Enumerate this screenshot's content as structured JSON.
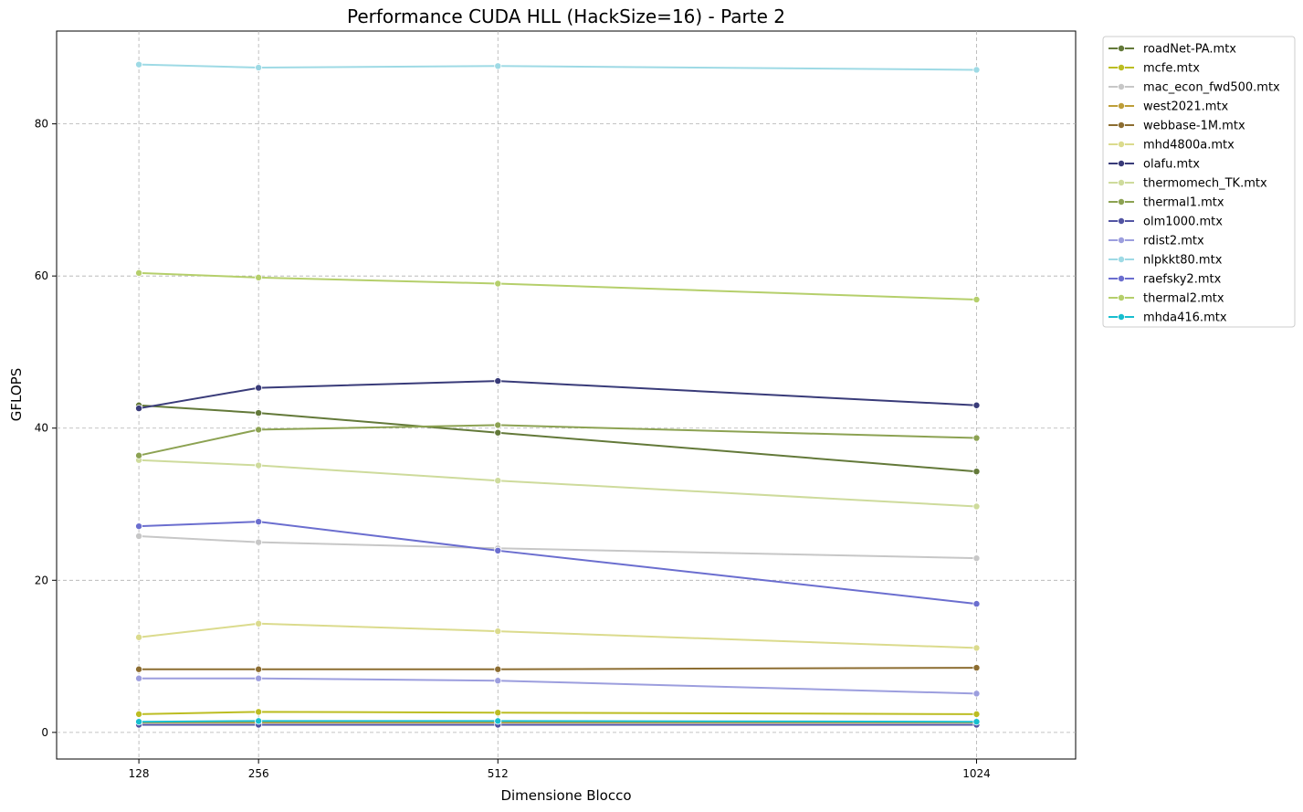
{
  "chart_data": {
    "type": "line",
    "title": "Performance CUDA HLL (HackSize=16) - Parte 2",
    "xlabel": "Dimensione Blocco",
    "ylabel": "GFLOPS",
    "x": [
      128,
      256,
      512,
      1024
    ],
    "x_tick_labels": [
      "128",
      "256",
      "512",
      "1024"
    ],
    "y_ticks": [
      0,
      20,
      40,
      60,
      80
    ],
    "y_tick_labels": [
      "0",
      "20",
      "40",
      "60",
      "80"
    ],
    "xlim": [
      40,
      1130
    ],
    "ylim": [
      -3.5,
      92.2
    ],
    "grid": true,
    "legend_position": "outside-top-right",
    "series": [
      {
        "name": "roadNet-PA.mtx",
        "color": "#637939",
        "values": [
          43.0,
          42.0,
          39.4,
          34.3
        ]
      },
      {
        "name": "mcfe.mtx",
        "color": "#bcbd22",
        "values": [
          2.4,
          2.7,
          2.6,
          2.4
        ]
      },
      {
        "name": "mac_econ_fwd500.mtx",
        "color": "#c7c7c7",
        "values": [
          25.8,
          25.0,
          24.2,
          22.9
        ]
      },
      {
        "name": "west2021.mtx",
        "color": "#bd9e39",
        "values": [
          1.3,
          1.3,
          1.3,
          1.3
        ]
      },
      {
        "name": "webbase-1M.mtx",
        "color": "#8c6d31",
        "values": [
          8.3,
          8.3,
          8.3,
          8.5
        ]
      },
      {
        "name": "mhd4800a.mtx",
        "color": "#dbdb8d",
        "values": [
          12.5,
          14.3,
          13.3,
          11.1
        ]
      },
      {
        "name": "olafu.mtx",
        "color": "#393b79",
        "values": [
          42.6,
          45.3,
          46.2,
          43.0
        ]
      },
      {
        "name": "thermomech_TK.mtx",
        "color": "#cedb9c",
        "values": [
          35.8,
          35.1,
          33.1,
          29.7
        ]
      },
      {
        "name": "thermal1.mtx",
        "color": "#8ca252",
        "values": [
          36.4,
          39.8,
          40.4,
          38.7
        ]
      },
      {
        "name": "olm1000.mtx",
        "color": "#5254a3",
        "values": [
          1.0,
          1.0,
          1.0,
          1.0
        ]
      },
      {
        "name": "rdist2.mtx",
        "color": "#9c9ede",
        "values": [
          7.1,
          7.1,
          6.8,
          5.1
        ]
      },
      {
        "name": "nlpkkt80.mtx",
        "color": "#9edae5",
        "values": [
          87.8,
          87.4,
          87.6,
          87.1
        ]
      },
      {
        "name": "raefsky2.mtx",
        "color": "#6b6ecf",
        "values": [
          27.1,
          27.7,
          23.9,
          16.9
        ]
      },
      {
        "name": "thermal2.mtx",
        "color": "#b5cf6b",
        "values": [
          60.4,
          59.8,
          59.0,
          56.9
        ]
      },
      {
        "name": "mhda416.mtx",
        "color": "#17becf",
        "values": [
          1.4,
          1.5,
          1.5,
          1.4
        ]
      }
    ]
  }
}
